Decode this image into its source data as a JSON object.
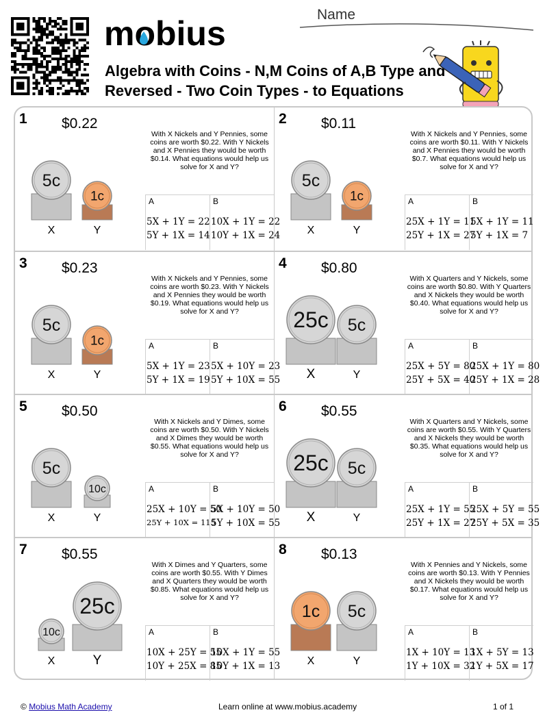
{
  "header": {
    "logo_text": "mobius",
    "title": "Algebra with Coins - N,M Coins of A,B Type and Reversed - Two Coin Types - to Equations",
    "name_label": "Name"
  },
  "colors": {
    "silver": "#d6d6d6",
    "silver_stack": "#c4c4c4",
    "copper": "#f2a66e",
    "copper_stack": "#b97a55",
    "border": "#c8c8c8"
  },
  "problems": [
    {
      "number": "1",
      "amount": "$0.22",
      "question": "With X Nickels and Y Pennies, some coins are worth $0.22. With Y Nickels and X Pennies they would be worth $0.14. What equations would help us solve for X and Y?",
      "coin_x": {
        "label": "5c",
        "metal": "silver",
        "size": "md"
      },
      "coin_y": {
        "label": "1c",
        "metal": "copper",
        "size": "sm"
      },
      "x_label": "X",
      "y_label": "Y",
      "option_a": {
        "letter": "A",
        "eq1": "5X + 1Y = 22",
        "eq2": "5Y + 1X = 14"
      },
      "option_b": {
        "letter": "B",
        "eq1": "10X + 1Y = 22",
        "eq2": "10Y + 1X = 24"
      }
    },
    {
      "number": "2",
      "amount": "$0.11",
      "question": "With X Nickels and Y Pennies, some coins are worth $0.11. With Y Nickels and X Pennies they would be worth $0.7. What equations would help us solve for X and Y?",
      "coin_x": {
        "label": "5c",
        "metal": "silver",
        "size": "md"
      },
      "coin_y": {
        "label": "1c",
        "metal": "copper",
        "size": "sm"
      },
      "x_label": "X",
      "y_label": "Y",
      "option_a": {
        "letter": "A",
        "eq1": "25X + 1Y = 11",
        "eq2": "25Y + 1X = 27"
      },
      "option_b": {
        "letter": "B",
        "eq1": "5X + 1Y = 11",
        "eq2": "5Y + 1X = 7"
      }
    },
    {
      "number": "3",
      "amount": "$0.23",
      "question": "With X Nickels and Y Pennies, some coins are worth $0.23. With Y Nickels and X Pennies they would be worth $0.19. What equations would help us solve for X and Y?",
      "coin_x": {
        "label": "5c",
        "metal": "silver",
        "size": "md"
      },
      "coin_y": {
        "label": "1c",
        "metal": "copper",
        "size": "sm"
      },
      "x_label": "X",
      "y_label": "Y",
      "option_a": {
        "letter": "A",
        "eq1": "5X + 1Y = 23",
        "eq2": "5Y + 1X = 19"
      },
      "option_b": {
        "letter": "B",
        "eq1": "5X + 10Y = 23",
        "eq2": "5Y + 10X = 55"
      }
    },
    {
      "number": "4",
      "amount": "$0.80",
      "question": "With X Quarters and Y Nickels, some coins are worth $0.80. With Y Quarters and X Nickels they would be worth $0.40. What equations would help us solve for X and Y?",
      "coin_x": {
        "label": "25c",
        "metal": "silver",
        "size": "lg"
      },
      "coin_y": {
        "label": "5c",
        "metal": "silver",
        "size": "md"
      },
      "x_label": "X",
      "y_label": "Y",
      "option_a": {
        "letter": "A",
        "eq1": "25X + 5Y = 80",
        "eq2": "25Y + 5X = 40"
      },
      "option_b": {
        "letter": "B",
        "eq1": "25X + 1Y = 80",
        "eq2": "25Y + 1X = 28"
      }
    },
    {
      "number": "5",
      "amount": "$0.50",
      "question": "With X Nickels and Y Dimes, some coins are worth $0.50. With Y Nickels and X Dimes they would be worth $0.55. What equations would help us solve for X and Y?",
      "coin_x": {
        "label": "5c",
        "metal": "silver",
        "size": "md"
      },
      "coin_y": {
        "label": "10c",
        "metal": "silver",
        "size": "xs"
      },
      "x_label": "X",
      "y_label": "Y",
      "option_a": {
        "letter": "A",
        "eq1": "25X + 10Y = 50",
        "eq2": "25Y + 10X = 115"
      },
      "option_b": {
        "letter": "B",
        "eq1": "5X + 10Y = 50",
        "eq2": "5Y + 10X = 55"
      }
    },
    {
      "number": "6",
      "amount": "$0.55",
      "question": "With X Quarters and Y Nickels, some coins are worth $0.55. With Y Quarters and X Nickels they would be worth $0.35. What equations would help us solve for X and Y?",
      "coin_x": {
        "label": "25c",
        "metal": "silver",
        "size": "lg"
      },
      "coin_y": {
        "label": "5c",
        "metal": "silver",
        "size": "md"
      },
      "x_label": "X",
      "y_label": "Y",
      "option_a": {
        "letter": "A",
        "eq1": "25X + 1Y = 55",
        "eq2": "25Y + 1X = 27"
      },
      "option_b": {
        "letter": "B",
        "eq1": "25X + 5Y = 55",
        "eq2": "25Y + 5X = 35"
      }
    },
    {
      "number": "7",
      "amount": "$0.55",
      "question": "With X Dimes and Y Quarters, some coins are worth $0.55. With Y Dimes and X Quarters they would be worth $0.85. What equations would help us solve for X and Y?",
      "coin_x": {
        "label": "10c",
        "metal": "silver",
        "size": "xs"
      },
      "coin_y": {
        "label": "25c",
        "metal": "silver",
        "size": "lg"
      },
      "x_label": "X",
      "y_label": "Y",
      "option_a": {
        "letter": "A",
        "eq1": "10X + 25Y = 55",
        "eq2": "10Y + 25X = 85"
      },
      "option_b": {
        "letter": "B",
        "eq1": "10X + 1Y = 55",
        "eq2": "10Y + 1X = 13"
      }
    },
    {
      "number": "8",
      "amount": "$0.13",
      "question": "With X Pennies and Y Nickels, some coins are worth $0.13. With Y Pennies and X Nickels they would be worth $0.17. What equations would help us solve for X and Y?",
      "coin_x": {
        "label": "1c",
        "metal": "copper",
        "size": "md"
      },
      "coin_y": {
        "label": "5c",
        "metal": "silver",
        "size": "md"
      },
      "x_label": "X",
      "y_label": "Y",
      "option_a": {
        "letter": "A",
        "eq1": "1X + 10Y = 13",
        "eq2": "1Y + 10X = 32"
      },
      "option_b": {
        "letter": "B",
        "eq1": "1X + 5Y = 13",
        "eq2": "1Y + 5X = 17"
      }
    }
  ],
  "footer": {
    "copyright": "©",
    "link_text": "Mobius Math Academy",
    "center": "Learn online at www.mobius.academy",
    "page": "1 of 1"
  }
}
